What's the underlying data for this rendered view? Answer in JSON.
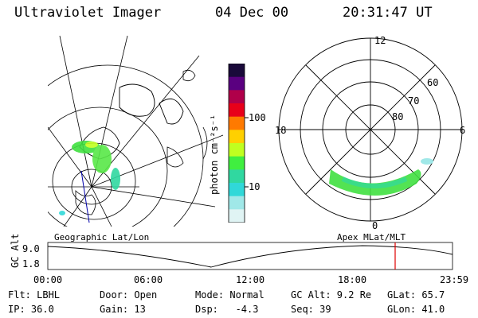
{
  "header": {
    "title": "Ultraviolet Imager",
    "date": "04 Dec 00",
    "time": "20:31:47 UT"
  },
  "geo_panel": {
    "label": "Geographic Lat/Lon"
  },
  "apex_panel": {
    "label": "Apex MLat/MLT",
    "mlt_labels": {
      "top": "12",
      "left": "18",
      "right": "6",
      "bottom": "0"
    },
    "lat_labels": [
      "60",
      "70",
      "80"
    ]
  },
  "colorbar": {
    "unit_label": "photon cm⁻²s⁻¹",
    "tick_labels": [
      "100",
      "10"
    ],
    "colors": [
      "#1a0a3a",
      "#5a0080",
      "#b0004a",
      "#e8001a",
      "#ff7a00",
      "#ffd000",
      "#c0ff20",
      "#40ef40",
      "#30d8a0",
      "#30d8d8",
      "#a0e8e8",
      "#e0f4f4"
    ]
  },
  "timeline": {
    "ylabel": "GC Alt",
    "y_ticks": [
      "9.0",
      "1.8"
    ],
    "x_ticks": [
      "00:00",
      "06:00",
      "12:00",
      "18:00",
      "23:59"
    ],
    "marker_color": "#e00000"
  },
  "info": {
    "row1": {
      "flt": "Flt: LBHL",
      "door": "Door: Open",
      "mode": "Mode: Normal",
      "gcalt": "GC Alt: 9.2 Re",
      "glat": "GLat: 65.7"
    },
    "row2": {
      "ip": "IP: 36.0",
      "gain": "Gain: 13",
      "dsp": "Dsp:   -4.3",
      "seq": "Seq: 39",
      "glon": "GLon: 41.0"
    }
  }
}
